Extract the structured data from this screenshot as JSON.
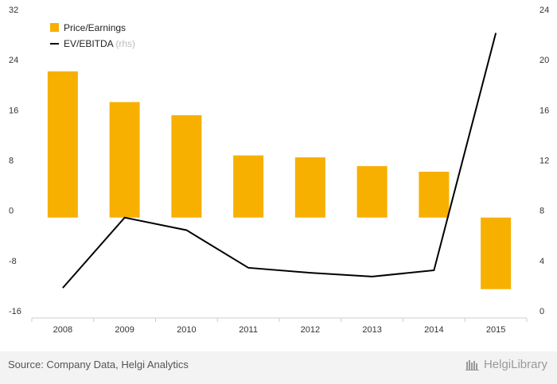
{
  "chart_data": {
    "type": "bar",
    "categories": [
      "2008",
      "2009",
      "2010",
      "2011",
      "2012",
      "2013",
      "2014",
      "2015"
    ],
    "series": [
      {
        "name": "Price/Earnings",
        "type": "bar",
        "axis": "left",
        "color": "#f7b000",
        "values": [
          23.3,
          18.4,
          16.3,
          9.9,
          9.6,
          8.2,
          7.3,
          -11.4
        ]
      },
      {
        "name": "EV/EBITDA",
        "name_suffix": "(rhs)",
        "type": "line",
        "axis": "right",
        "color": "#000000",
        "values": [
          2.4,
          8.0,
          7.0,
          4.0,
          3.6,
          3.3,
          3.8,
          22.7
        ]
      }
    ],
    "ylim": [
      -16,
      32
    ],
    "yticks": [
      "32",
      "24",
      "16",
      "8",
      "0",
      "-8",
      "-16"
    ],
    "y2lim": [
      0,
      24
    ],
    "y2ticks": [
      "24",
      "20",
      "16",
      "12",
      "8",
      "4",
      "0"
    ],
    "legend_position": "top-left",
    "grid": false
  },
  "footer": {
    "source": "Source: Company Data, Helgi Analytics",
    "brand": "HelgiLibrary"
  }
}
